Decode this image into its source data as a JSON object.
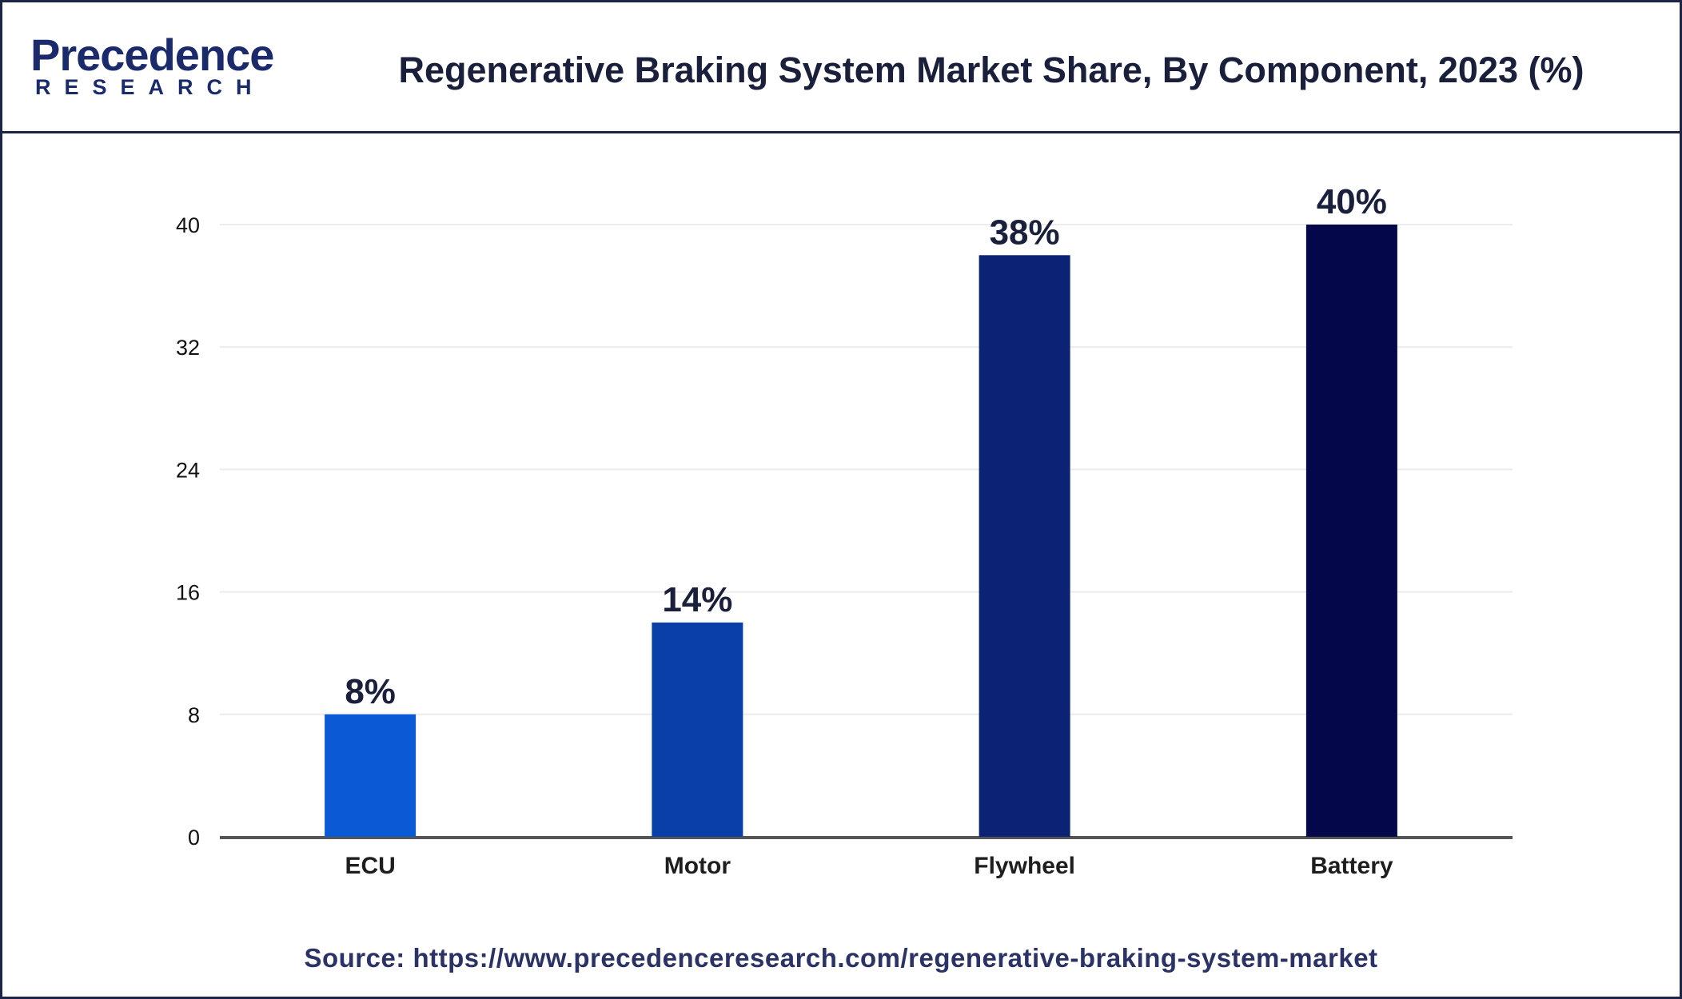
{
  "header": {
    "logo_main": "Precedence",
    "logo_sub": "RESEARCH",
    "title": "Regenerative Braking System Market Share, By Component, 2023 (%)"
  },
  "chart_data": {
    "type": "bar",
    "title": "Regenerative Braking System Market Share, By Component, 2023 (%)",
    "categories": [
      "ECU",
      "Motor",
      "Flywheel",
      "Battery"
    ],
    "values": [
      8,
      14,
      38,
      40
    ],
    "data_labels": [
      "8%",
      "14%",
      "38%",
      "40%"
    ],
    "colors": [
      "#0a5ad6",
      "#0a3ea8",
      "#0b2275",
      "#04084a"
    ],
    "xlabel": "",
    "ylabel": "",
    "ylim": [
      0,
      40
    ],
    "yticks": [
      0,
      8,
      16,
      24,
      32,
      40
    ],
    "grid": true,
    "legend": "none"
  },
  "footer": {
    "source": "Source: https://www.precedenceresearch.com/regenerative-braking-system-market"
  }
}
